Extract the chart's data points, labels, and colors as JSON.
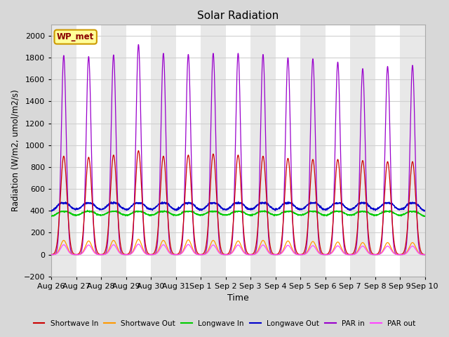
{
  "title": "Solar Radiation",
  "xlabel": "Time",
  "ylabel": "Radiation (W/m2, umol/m2/s)",
  "ylim": [
    -200,
    2100
  ],
  "yticks": [
    -200,
    0,
    200,
    400,
    600,
    800,
    1000,
    1200,
    1400,
    1600,
    1800,
    2000
  ],
  "bg_color": "#d8d8d8",
  "plot_bg_color": "#ffffff",
  "grid_color": "#d0d0d0",
  "colors": {
    "shortwave_in": "#cc0000",
    "shortwave_out": "#ff9900",
    "longwave_in": "#00cc00",
    "longwave_out": "#0000cc",
    "par_in": "#9900cc",
    "par_out": "#ff44ff"
  },
  "station_label": "WP_met",
  "n_days": 15,
  "days_labels": [
    "Aug 26",
    "Aug 27",
    "Aug 28",
    "Aug 29",
    "Aug 30",
    "Aug 31",
    "Sep 1",
    "Sep 2",
    "Sep 3",
    "Sep 4",
    "Sep 5",
    "Sep 6",
    "Sep 7",
    "Sep 8",
    "Sep 9",
    "Sep 10"
  ]
}
